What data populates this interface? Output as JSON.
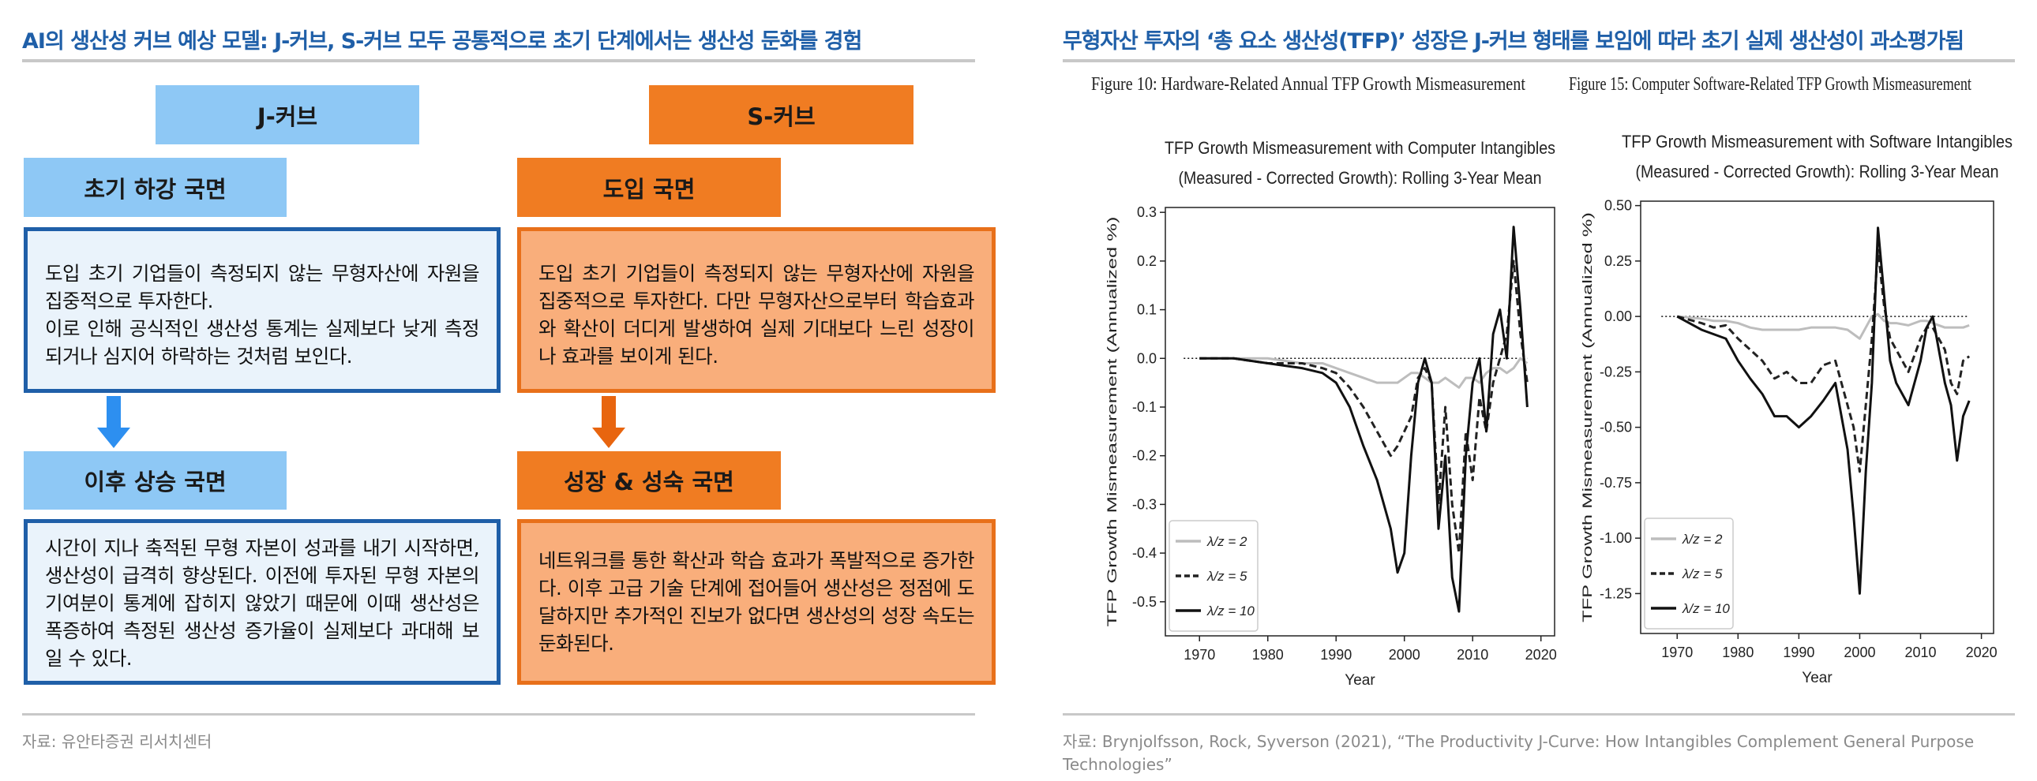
{
  "left": {
    "title": "AI의 생산성 커브 예상 모델: J-커브, S-커브 모두 공통적으로 초기 단계에서는 생산성 둔화를 경험",
    "j_curve": {
      "label": "J-커브",
      "phases": [
        {
          "heading": "초기 하강 국면",
          "paragraphs": [
            "도입 초기 기업들이 측정되지 않는 무형자산에 자원을 집중적으로 투자한다.",
            "이로 인해 공식적인 생산성 통계는 실제보다 낮게 측정되거나 심지어 하락하는 것처럼 보인다."
          ]
        },
        {
          "heading": "이후 상승 국면",
          "paragraphs": [
            "시간이 지나 축적된 무형 자본이 성과를 내기 시작하면, 생산성이 급격히 향상된다. 이전에 투자된 무형 자본의 기여분이 통계에 잡히지 않았기 때문에 이때 생산성은 폭증하여 측정된 생산성 증가율이 실제보다 과대해 보일 수 있다."
          ]
        }
      ]
    },
    "s_curve": {
      "label": "S-커브",
      "phases": [
        {
          "heading": "도입 국면",
          "paragraphs": [
            "도입 초기 기업들이 측정되지 않는 무형자산에 자원을 집중적으로 투자한다. 다만 무형자산으로부터 학습효과와 확산이 더디게 발생하여 실제 기대보다 느린 성장이나 효과를 보이게 된다."
          ]
        },
        {
          "heading": "성장 & 성숙 국면",
          "paragraphs": [
            "네트워크를 통한 확산과 학습 효과가 폭발적으로 증가한다. 이후 고급 기술 단계에 접어들어 생산성은 정점에 도달하지만 추가적인 진보가 없다면 생산성의 성장 속도는 둔화된다."
          ]
        }
      ]
    },
    "source": "자료: 유안타증권 리서치센터"
  },
  "right": {
    "title": "무형자산 투자의 ‘총 요소 생산성(TFP)’ 성장은 J-커브 형태를 보임에 따라 초기 실제 생산성이 과소평가됨",
    "figures": [
      "Figure 10: Hardware-Related Annual TFP Growth Mismeasurement",
      "Figure 15: Computer Software-Related TFP Growth Mismeasurement"
    ],
    "source": "자료: Brynjolfsson, Rock, Syverson (2021), “The Productivity J-Curve: How Intangibles Complement General Purpose Technologies”"
  },
  "chart_data": [
    {
      "type": "line",
      "title": [
        "TFP Growth Mismeasurement with Computer Intangibles",
        "(Measured - Corrected Growth): Rolling 3-Year Mean"
      ],
      "x_label": "Year",
      "y_label": "TFP Growth Mismeasurement (Annualized %)",
      "xlim": [
        1965,
        2022
      ],
      "xticks": [
        1970,
        1980,
        1990,
        2000,
        2010,
        2020
      ],
      "ylim": [
        -0.57,
        0.31
      ],
      "yticks": [
        0.3,
        0.2,
        0.1,
        {
          "value": 0,
          "label": "0.0"
        },
        -0.1,
        -0.2,
        -0.3,
        -0.4,
        -0.5
      ],
      "reference_line": 0,
      "legend": "lower left",
      "x": [
        1970,
        1975,
        1980,
        1985,
        1988,
        1990,
        1992,
        1994,
        1996,
        1998,
        1999,
        2000,
        2001,
        2002,
        2003,
        2004,
        2005,
        2006,
        2007,
        2008,
        2009,
        2010,
        2011,
        2012,
        2013,
        2014,
        2015,
        2016,
        2017,
        2018
      ],
      "series": [
        {
          "name": "λ/z = 2",
          "color": "#bdbdbd",
          "style": "solid",
          "values": [
            0,
            0,
            0,
            -0.01,
            -0.01,
            -0.02,
            -0.03,
            -0.04,
            -0.05,
            -0.05,
            -0.05,
            -0.04,
            -0.03,
            -0.03,
            -0.04,
            -0.05,
            -0.05,
            -0.04,
            -0.05,
            -0.06,
            -0.04,
            -0.04,
            -0.05,
            -0.03,
            -0.02,
            -0.02,
            -0.03,
            -0.02,
            0,
            -0.01
          ]
        },
        {
          "name": "λ/z = 5",
          "color": "#222222",
          "style": "dashed",
          "values": [
            0,
            0,
            -0.01,
            -0.01,
            -0.02,
            -0.03,
            -0.06,
            -0.1,
            -0.15,
            -0.2,
            -0.18,
            -0.15,
            -0.12,
            -0.04,
            -0.02,
            -0.05,
            -0.3,
            -0.1,
            -0.3,
            -0.4,
            -0.15,
            -0.25,
            -0.08,
            -0.15,
            -0.05,
            0,
            0.05,
            0.2,
            0.05,
            -0.05
          ]
        },
        {
          "name": "λ/z = 10",
          "color": "#111111",
          "style": "solid",
          "values": [
            0,
            0,
            -0.01,
            -0.02,
            -0.03,
            -0.05,
            -0.1,
            -0.18,
            -0.25,
            -0.35,
            -0.44,
            -0.4,
            -0.2,
            -0.05,
            0,
            -0.05,
            -0.35,
            -0.2,
            -0.45,
            -0.52,
            -0.2,
            -0.05,
            0,
            -0.15,
            0.05,
            0.1,
            0,
            0.27,
            0.1,
            -0.1
          ]
        }
      ]
    },
    {
      "type": "line",
      "title": [
        "TFP Growth Mismeasurement with Software Intangibles",
        "(Measured - Corrected Growth): Rolling 3-Year Mean"
      ],
      "x_label": "Year",
      "y_label": "TFP Growth Mismeasurement (Annualized %)",
      "xlim": [
        1964,
        2022
      ],
      "xticks": [
        1970,
        1980,
        1990,
        2000,
        2010,
        2020
      ],
      "ylim": [
        -1.43,
        0.52
      ],
      "yticks": [
        {
          "value": 0.5,
          "label": "0.50"
        },
        0.25,
        {
          "value": 0,
          "label": "0.00"
        },
        -0.25,
        {
          "value": -0.5,
          "label": "-0.50"
        },
        -0.75,
        {
          "value": -1,
          "label": "-1.00"
        },
        -1.25
      ],
      "reference_line": 0,
      "legend": "lower left",
      "x": [
        1970,
        1974,
        1976,
        1978,
        1980,
        1982,
        1984,
        1986,
        1988,
        1990,
        1992,
        1994,
        1996,
        1998,
        1999,
        2000,
        2001,
        2002,
        2003,
        2004,
        2005,
        2006,
        2008,
        2010,
        2011,
        2012,
        2014,
        2015,
        2016,
        2017,
        2018
      ],
      "series": [
        {
          "name": "λ/z = 2",
          "color": "#bdbdbd",
          "style": "solid",
          "values": [
            0,
            -0.01,
            -0.02,
            -0.02,
            -0.03,
            -0.05,
            -0.06,
            -0.06,
            -0.06,
            -0.06,
            -0.05,
            -0.05,
            -0.05,
            -0.06,
            -0.08,
            -0.1,
            -0.05,
            0,
            0.01,
            -0.02,
            -0.03,
            -0.03,
            -0.04,
            -0.02,
            -0.02,
            -0.03,
            -0.05,
            -0.05,
            -0.05,
            -0.05,
            -0.04
          ]
        },
        {
          "name": "λ/z = 5",
          "color": "#222222",
          "style": "dashed",
          "values": [
            0,
            -0.03,
            -0.05,
            -0.04,
            -0.1,
            -0.15,
            -0.2,
            -0.28,
            -0.25,
            -0.3,
            -0.3,
            -0.22,
            -0.2,
            -0.4,
            -0.5,
            -0.7,
            -0.4,
            -0.1,
            0.3,
            0.05,
            -0.1,
            -0.15,
            -0.25,
            -0.1,
            -0.05,
            -0.05,
            -0.15,
            -0.3,
            -0.35,
            -0.2,
            -0.18
          ]
        },
        {
          "name": "λ/z = 10",
          "color": "#111111",
          "style": "solid",
          "values": [
            0,
            -0.06,
            -0.08,
            -0.1,
            -0.2,
            -0.28,
            -0.35,
            -0.45,
            -0.45,
            -0.5,
            -0.45,
            -0.38,
            -0.3,
            -0.6,
            -0.9,
            -1.25,
            -0.7,
            -0.3,
            0.4,
            0.1,
            -0.2,
            -0.3,
            -0.4,
            -0.2,
            -0.05,
            0,
            -0.3,
            -0.4,
            -0.65,
            -0.45,
            -0.38
          ]
        }
      ]
    }
  ]
}
